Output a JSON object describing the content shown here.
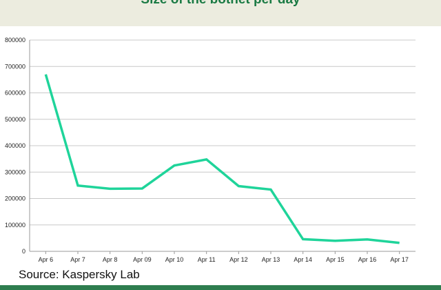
{
  "source_text": "Source: Kaspersky Lab",
  "colors": {
    "line": "#1fd49a",
    "title": "#1a7a44",
    "header_band": "#ececdf",
    "bottom_bar": "#2e7d4f",
    "gridline": "#c8c8c8"
  },
  "chart_data": {
    "type": "line",
    "title": "Size of the botnet per day",
    "xlabel": "",
    "ylabel": "",
    "categories": [
      "Apr 6",
      "Apr 7",
      "Apr 8",
      "Apr 09",
      "Apr 10",
      "Apr 11",
      "Apr 12",
      "Apr 13",
      "Apr 14",
      "Apr 15",
      "Apr 16",
      "Apr 17"
    ],
    "series": [
      {
        "values": [
          670000,
          249000,
          237000,
          238000,
          325000,
          348000,
          247000,
          234000,
          46000,
          40000,
          45000,
          32000
        ]
      }
    ],
    "ylim": [
      0,
      800000
    ],
    "yticks": [
      0,
      100000,
      200000,
      300000,
      400000,
      500000,
      600000,
      700000,
      800000
    ],
    "ytick_labels": [
      "0",
      "100000",
      "200000",
      "300000",
      "400000",
      "500000",
      "600000",
      "700000",
      "800000"
    ],
    "grid": true,
    "legend": "none"
  }
}
